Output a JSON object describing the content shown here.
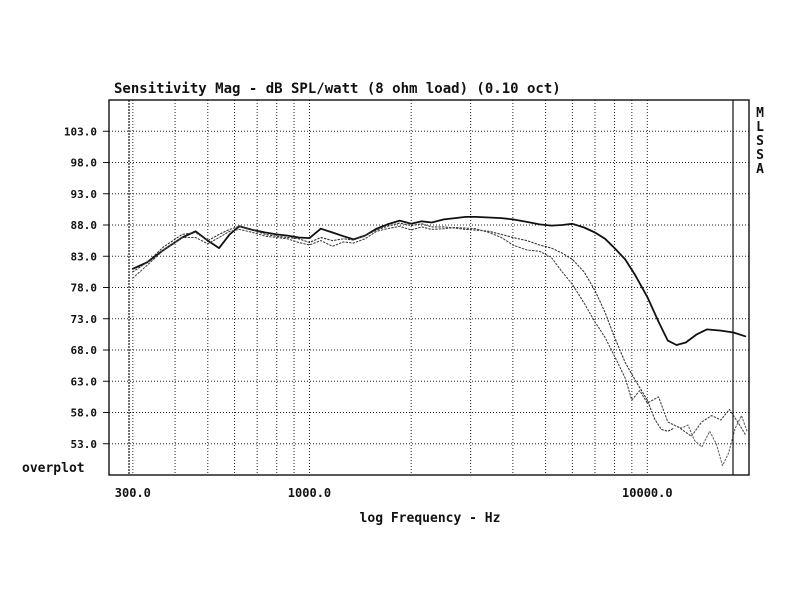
{
  "chart_data": {
    "type": "line",
    "title": "Sensitivity Mag - dB SPL/watt (8 ohm load) (0.10 oct)",
    "xlabel": "log Frequency - Hz",
    "ylabel": "",
    "x_scale": "log",
    "xlim": [
      255,
      20000
    ],
    "ylim": [
      48,
      108
    ],
    "x_ticks": [
      300,
      1000,
      10000
    ],
    "x_tick_labels": [
      "300.0",
      "1000.0",
      "10000.0"
    ],
    "y_ticks": [
      53,
      58,
      63,
      68,
      73,
      78,
      83,
      88,
      93,
      98,
      103
    ],
    "y_tick_labels": [
      "53.0",
      "58.0",
      "63.0",
      "68.0",
      "73.0",
      "78.0",
      "83.0",
      "88.0",
      "93.0",
      "98.0",
      "103.0"
    ],
    "grid": true,
    "corner_label": "overplot",
    "side_label": [
      "M",
      "L",
      "S",
      "S",
      "A"
    ],
    "series": [
      {
        "style": "solid",
        "color": "#111111",
        "x": [
          300,
          330,
          370,
          420,
          460,
          500,
          540,
          580,
          620,
          680,
          740,
          800,
          860,
          930,
          1000,
          1080,
          1170,
          1260,
          1350,
          1460,
          1580,
          1700,
          1850,
          2000,
          2150,
          2300,
          2500,
          2700,
          2900,
          3100,
          3400,
          3700,
          4000,
          4400,
          4800,
          5200,
          5600,
          6000,
          6500,
          7000,
          7500,
          8000,
          8600,
          9200,
          10000,
          10800,
          11500,
          12200,
          13000,
          14000,
          15000,
          16500,
          18000,
          19500
        ],
        "y": [
          81,
          82,
          84,
          86,
          87,
          85.5,
          84.3,
          86.5,
          87.8,
          87.2,
          86.8,
          86.5,
          86.3,
          86,
          85.9,
          87.4,
          86.8,
          86.2,
          85.7,
          86.3,
          87.4,
          88.1,
          88.7,
          88.2,
          88.6,
          88.4,
          88.9,
          89.1,
          89.3,
          89.3,
          89.2,
          89.1,
          88.9,
          88.5,
          88.1,
          87.9,
          88,
          88.2,
          87.6,
          86.8,
          85.8,
          84.3,
          82.5,
          80,
          76.5,
          72.5,
          69.5,
          68.8,
          69.2,
          70.5,
          71.3,
          71.1,
          70.8,
          70.2
        ]
      },
      {
        "style": "dotted",
        "color": "#333333",
        "x": [
          300,
          330,
          370,
          420,
          460,
          500,
          540,
          580,
          620,
          680,
          740,
          800,
          860,
          930,
          1000,
          1080,
          1170,
          1260,
          1350,
          1460,
          1580,
          1700,
          1850,
          2000,
          2150,
          2300,
          2500,
          2700,
          2900,
          3100,
          3400,
          3700,
          4000,
          4400,
          4800,
          5200,
          5600,
          6000,
          6500,
          7000,
          7500,
          8000,
          8600,
          9200,
          10000,
          10500,
          11000,
          11500,
          12000
        ],
        "y": [
          80.5,
          82,
          84.5,
          86.5,
          86.8,
          85.5,
          86.5,
          87.3,
          87.8,
          87.2,
          86.5,
          86.2,
          86,
          85.8,
          85.2,
          86,
          85.5,
          85.8,
          85.6,
          86.3,
          87.2,
          87.8,
          88.3,
          87.9,
          88.2,
          87.7,
          87.7,
          87.5,
          87.3,
          87.2,
          87,
          86.5,
          86,
          85.5,
          84.8,
          84.3,
          83.5,
          82.5,
          80.5,
          77.5,
          74,
          70,
          66,
          63.2,
          60,
          57,
          55.3,
          55,
          55.5
        ]
      },
      {
        "style": "dotted",
        "color": "#444444",
        "x": [
          300,
          330,
          370,
          420,
          460,
          500,
          540,
          580,
          620,
          680,
          740,
          800,
          860,
          930,
          1000,
          1080,
          1170,
          1260,
          1350,
          1460,
          1580,
          1700,
          1850,
          2000,
          2150,
          2300,
          2500,
          2700,
          2900,
          3100,
          3400,
          3700,
          4000,
          4400,
          4800,
          5200,
          5600,
          6000,
          6500,
          7000,
          7500,
          8000,
          8600,
          9000,
          9500,
          10000,
          10800,
          11500,
          12500,
          13500,
          14500,
          15500,
          16500,
          17500,
          18500,
          19500
        ],
        "y": [
          79.5,
          81.5,
          84,
          86,
          86,
          85,
          86,
          87,
          87.3,
          86.8,
          86.2,
          86,
          85.8,
          85.2,
          84.8,
          85.5,
          84.6,
          85.3,
          85.1,
          85.8,
          87,
          87.4,
          87.8,
          87.2,
          87.7,
          87.3,
          87.4,
          87.6,
          87.5,
          87.4,
          86.8,
          86,
          84.8,
          84,
          83.8,
          82.8,
          80.5,
          78.5,
          75.5,
          72.5,
          70,
          67,
          63.5,
          60,
          61.5,
          59.5,
          60.5,
          56.5,
          55.5,
          54.2,
          56.5,
          57.5,
          56.8,
          58.5,
          56.5,
          54.5
        ]
      },
      {
        "style": "dotted",
        "color": "#666666",
        "x": [
          12000,
          12600,
          13200,
          13800,
          14500,
          15300,
          16000,
          16700,
          17400,
          18200,
          19000,
          19800
        ],
        "y": [
          56,
          55.5,
          56,
          53.5,
          52.5,
          55,
          53,
          49.5,
          51.5,
          55.5,
          57.5,
          54.8
        ]
      }
    ]
  }
}
